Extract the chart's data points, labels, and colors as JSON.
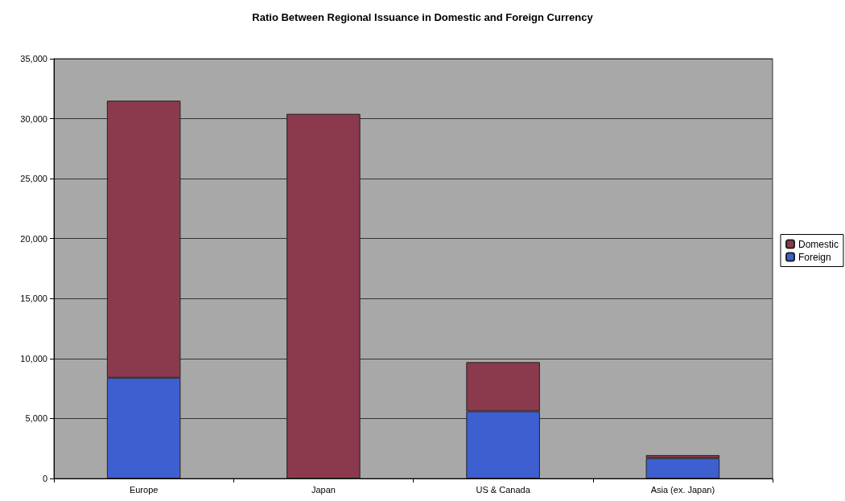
{
  "chart_data": {
    "type": "bar",
    "title": "Ratio Between Regional Issuance in Domestic and Foreign Currency",
    "categories": [
      "Europe",
      "Japan",
      "US & Canada",
      "Asia (ex. Japan)"
    ],
    "stacked": true,
    "series": [
      {
        "name": "Foreign",
        "color": "#3d5fcf",
        "values": [
          8400,
          0,
          5600,
          1700
        ]
      },
      {
        "name": "Domestic",
        "color": "#8a3a4c",
        "values": [
          23100,
          30400,
          4100,
          250
        ]
      }
    ],
    "ylim": [
      0,
      35000
    ],
    "yticks": [
      0,
      {
        "value": 5000,
        "label": "5,000"
      },
      {
        "value": 10000,
        "label": "10,000"
      },
      {
        "value": 15000,
        "label": "15,000"
      },
      {
        "value": 20000,
        "label": "20,000"
      },
      {
        "value": 25000,
        "label": "25,000"
      },
      {
        "value": 30000,
        "label": "30,000"
      },
      {
        "value": 35000,
        "label": "35,000"
      }
    ],
    "grid": "y",
    "legend": "right"
  }
}
